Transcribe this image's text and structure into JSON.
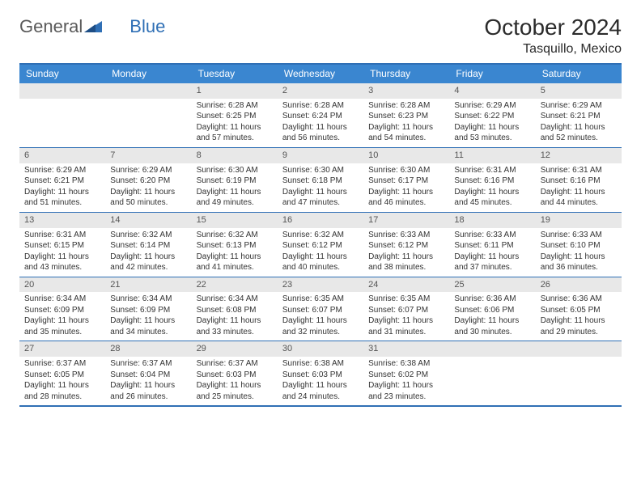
{
  "brand": {
    "part1": "General",
    "part2": "Blue"
  },
  "title": "October 2024",
  "location": "Tasquillo, Mexico",
  "colors": {
    "header_bg": "#3a86d0",
    "header_text": "#ffffff",
    "border": "#2f6fb5",
    "daynum_bg": "#e8e8e8",
    "text": "#333333",
    "brand_gray": "#5a5a5a",
    "brand_blue": "#2f6fb5"
  },
  "day_headers": [
    "Sunday",
    "Monday",
    "Tuesday",
    "Wednesday",
    "Thursday",
    "Friday",
    "Saturday"
  ],
  "weeks": [
    [
      {
        "n": "",
        "l1": "",
        "l2": "",
        "l3": "",
        "l4": ""
      },
      {
        "n": "",
        "l1": "",
        "l2": "",
        "l3": "",
        "l4": ""
      },
      {
        "n": "1",
        "l1": "Sunrise: 6:28 AM",
        "l2": "Sunset: 6:25 PM",
        "l3": "Daylight: 11 hours",
        "l4": "and 57 minutes."
      },
      {
        "n": "2",
        "l1": "Sunrise: 6:28 AM",
        "l2": "Sunset: 6:24 PM",
        "l3": "Daylight: 11 hours",
        "l4": "and 56 minutes."
      },
      {
        "n": "3",
        "l1": "Sunrise: 6:28 AM",
        "l2": "Sunset: 6:23 PM",
        "l3": "Daylight: 11 hours",
        "l4": "and 54 minutes."
      },
      {
        "n": "4",
        "l1": "Sunrise: 6:29 AM",
        "l2": "Sunset: 6:22 PM",
        "l3": "Daylight: 11 hours",
        "l4": "and 53 minutes."
      },
      {
        "n": "5",
        "l1": "Sunrise: 6:29 AM",
        "l2": "Sunset: 6:21 PM",
        "l3": "Daylight: 11 hours",
        "l4": "and 52 minutes."
      }
    ],
    [
      {
        "n": "6",
        "l1": "Sunrise: 6:29 AM",
        "l2": "Sunset: 6:21 PM",
        "l3": "Daylight: 11 hours",
        "l4": "and 51 minutes."
      },
      {
        "n": "7",
        "l1": "Sunrise: 6:29 AM",
        "l2": "Sunset: 6:20 PM",
        "l3": "Daylight: 11 hours",
        "l4": "and 50 minutes."
      },
      {
        "n": "8",
        "l1": "Sunrise: 6:30 AM",
        "l2": "Sunset: 6:19 PM",
        "l3": "Daylight: 11 hours",
        "l4": "and 49 minutes."
      },
      {
        "n": "9",
        "l1": "Sunrise: 6:30 AM",
        "l2": "Sunset: 6:18 PM",
        "l3": "Daylight: 11 hours",
        "l4": "and 47 minutes."
      },
      {
        "n": "10",
        "l1": "Sunrise: 6:30 AM",
        "l2": "Sunset: 6:17 PM",
        "l3": "Daylight: 11 hours",
        "l4": "and 46 minutes."
      },
      {
        "n": "11",
        "l1": "Sunrise: 6:31 AM",
        "l2": "Sunset: 6:16 PM",
        "l3": "Daylight: 11 hours",
        "l4": "and 45 minutes."
      },
      {
        "n": "12",
        "l1": "Sunrise: 6:31 AM",
        "l2": "Sunset: 6:16 PM",
        "l3": "Daylight: 11 hours",
        "l4": "and 44 minutes."
      }
    ],
    [
      {
        "n": "13",
        "l1": "Sunrise: 6:31 AM",
        "l2": "Sunset: 6:15 PM",
        "l3": "Daylight: 11 hours",
        "l4": "and 43 minutes."
      },
      {
        "n": "14",
        "l1": "Sunrise: 6:32 AM",
        "l2": "Sunset: 6:14 PM",
        "l3": "Daylight: 11 hours",
        "l4": "and 42 minutes."
      },
      {
        "n": "15",
        "l1": "Sunrise: 6:32 AM",
        "l2": "Sunset: 6:13 PM",
        "l3": "Daylight: 11 hours",
        "l4": "and 41 minutes."
      },
      {
        "n": "16",
        "l1": "Sunrise: 6:32 AM",
        "l2": "Sunset: 6:12 PM",
        "l3": "Daylight: 11 hours",
        "l4": "and 40 minutes."
      },
      {
        "n": "17",
        "l1": "Sunrise: 6:33 AM",
        "l2": "Sunset: 6:12 PM",
        "l3": "Daylight: 11 hours",
        "l4": "and 38 minutes."
      },
      {
        "n": "18",
        "l1": "Sunrise: 6:33 AM",
        "l2": "Sunset: 6:11 PM",
        "l3": "Daylight: 11 hours",
        "l4": "and 37 minutes."
      },
      {
        "n": "19",
        "l1": "Sunrise: 6:33 AM",
        "l2": "Sunset: 6:10 PM",
        "l3": "Daylight: 11 hours",
        "l4": "and 36 minutes."
      }
    ],
    [
      {
        "n": "20",
        "l1": "Sunrise: 6:34 AM",
        "l2": "Sunset: 6:09 PM",
        "l3": "Daylight: 11 hours",
        "l4": "and 35 minutes."
      },
      {
        "n": "21",
        "l1": "Sunrise: 6:34 AM",
        "l2": "Sunset: 6:09 PM",
        "l3": "Daylight: 11 hours",
        "l4": "and 34 minutes."
      },
      {
        "n": "22",
        "l1": "Sunrise: 6:34 AM",
        "l2": "Sunset: 6:08 PM",
        "l3": "Daylight: 11 hours",
        "l4": "and 33 minutes."
      },
      {
        "n": "23",
        "l1": "Sunrise: 6:35 AM",
        "l2": "Sunset: 6:07 PM",
        "l3": "Daylight: 11 hours",
        "l4": "and 32 minutes."
      },
      {
        "n": "24",
        "l1": "Sunrise: 6:35 AM",
        "l2": "Sunset: 6:07 PM",
        "l3": "Daylight: 11 hours",
        "l4": "and 31 minutes."
      },
      {
        "n": "25",
        "l1": "Sunrise: 6:36 AM",
        "l2": "Sunset: 6:06 PM",
        "l3": "Daylight: 11 hours",
        "l4": "and 30 minutes."
      },
      {
        "n": "26",
        "l1": "Sunrise: 6:36 AM",
        "l2": "Sunset: 6:05 PM",
        "l3": "Daylight: 11 hours",
        "l4": "and 29 minutes."
      }
    ],
    [
      {
        "n": "27",
        "l1": "Sunrise: 6:37 AM",
        "l2": "Sunset: 6:05 PM",
        "l3": "Daylight: 11 hours",
        "l4": "and 28 minutes."
      },
      {
        "n": "28",
        "l1": "Sunrise: 6:37 AM",
        "l2": "Sunset: 6:04 PM",
        "l3": "Daylight: 11 hours",
        "l4": "and 26 minutes."
      },
      {
        "n": "29",
        "l1": "Sunrise: 6:37 AM",
        "l2": "Sunset: 6:03 PM",
        "l3": "Daylight: 11 hours",
        "l4": "and 25 minutes."
      },
      {
        "n": "30",
        "l1": "Sunrise: 6:38 AM",
        "l2": "Sunset: 6:03 PM",
        "l3": "Daylight: 11 hours",
        "l4": "and 24 minutes."
      },
      {
        "n": "31",
        "l1": "Sunrise: 6:38 AM",
        "l2": "Sunset: 6:02 PM",
        "l3": "Daylight: 11 hours",
        "l4": "and 23 minutes."
      },
      {
        "n": "",
        "l1": "",
        "l2": "",
        "l3": "",
        "l4": ""
      },
      {
        "n": "",
        "l1": "",
        "l2": "",
        "l3": "",
        "l4": ""
      }
    ]
  ]
}
